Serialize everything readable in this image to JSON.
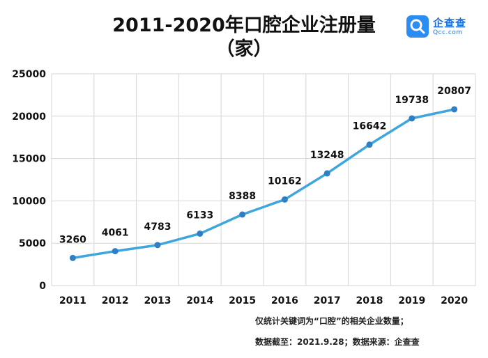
{
  "title": "2011-2020年口腔企业注册量",
  "subtitle": "（家）",
  "logo": {
    "name": "企查查",
    "url": "Qcc.com",
    "icon": "magnifier-logo-icon",
    "color": "#2b8cf2"
  },
  "notes": {
    "line1": "仅统计关键词为“口腔”的相关企业数量；",
    "line2": "数据截至：2021.9.28；数据来源：企查查"
  },
  "chart_data": {
    "type": "line",
    "title": "2011-2020年口腔企业注册量",
    "subtitle": "（家）",
    "xlabel": "",
    "ylabel": "",
    "categories": [
      "2011",
      "2012",
      "2013",
      "2014",
      "2015",
      "2016",
      "2017",
      "2018",
      "2019",
      "2020"
    ],
    "series": [
      {
        "values": [
          3260,
          4061,
          4783,
          6133,
          8388,
          10162,
          13248,
          16642,
          19738,
          20807
        ]
      }
    ],
    "ylim": [
      0,
      25000
    ],
    "yticks": [
      0,
      5000,
      10000,
      15000,
      20000,
      25000
    ],
    "grid": true,
    "line_color": "#3ea6dc",
    "marker_color": "#2e7fc4"
  }
}
